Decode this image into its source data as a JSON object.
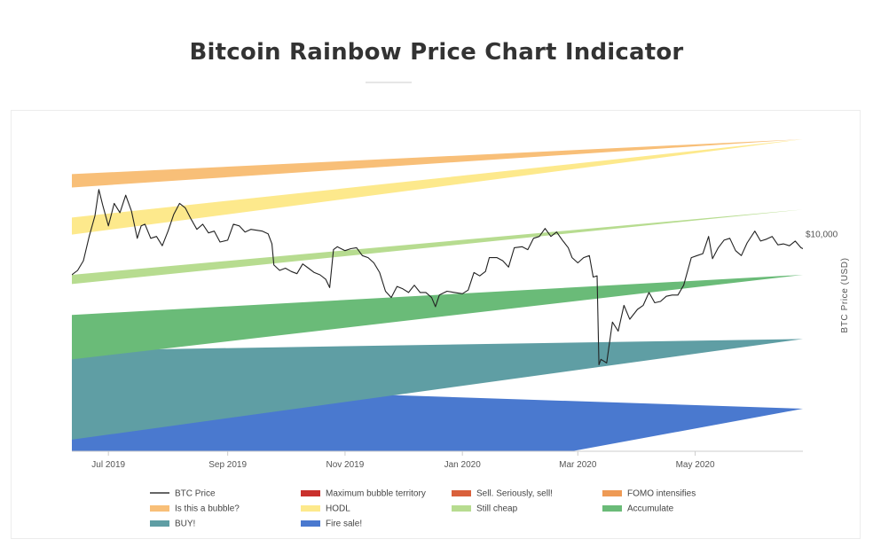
{
  "page": {
    "title": "Bitcoin Rainbow Price Chart Indicator"
  },
  "chart_data": {
    "type": "line",
    "title": "Bitcoin Rainbow Price Chart Indicator",
    "xlabel": "",
    "ylabel": "BTC Price (USD)",
    "y_scale": "log",
    "grid": false,
    "legend_position": "bottom",
    "x_range": [
      "2019-06-12",
      "2020-06-26"
    ],
    "y_range": [
      3000,
      17000
    ],
    "x_ticks": [
      {
        "label": "Jul 2019",
        "date": "2019-07-01"
      },
      {
        "label": "Sep 2019",
        "date": "2019-09-01"
      },
      {
        "label": "Nov 2019",
        "date": "2019-11-01"
      },
      {
        "label": "Jan 2020",
        "date": "2020-01-01"
      },
      {
        "label": "Mar 2020",
        "date": "2020-03-01"
      },
      {
        "label": "May 2020",
        "date": "2020-05-01"
      }
    ],
    "y_ticks": [
      {
        "label": "$10,000",
        "value": 10000
      }
    ],
    "bands": [
      {
        "name": "Fire sale!",
        "color": "#4a79cf",
        "start": [
          1800,
          4350
        ],
        "end": [
          3800,
          3800
        ]
      },
      {
        "name": "BUY!",
        "color": "#5f9ea4",
        "start": [
          3200,
          5250
        ],
        "end": [
          5600,
          5600
        ]
      },
      {
        "name": "Accumulate",
        "color": "#6abb78",
        "start": [
          5000,
          6400
        ],
        "end": [
          8000,
          8000
        ]
      },
      {
        "name": "Still cheap",
        "color": "#b7dc90",
        "start": [
          7600,
          8000
        ],
        "end": [
          11500,
          11500
        ]
      },
      {
        "name": "HODL",
        "color": "#fde98c",
        "start": [
          11000,
          10000
        ],
        "end": [
          17000,
          17000
        ]
      },
      {
        "name": "Is this a bubble?",
        "color": "#f8bf78",
        "start": [
          14000,
          13000
        ],
        "end": [
          17000,
          17000
        ]
      }
    ],
    "series": [
      {
        "name": "BTC Price",
        "color": "#222222",
        "points": [
          [
            "2019-06-12",
            8000
          ],
          [
            "2019-06-15",
            8200
          ],
          [
            "2019-06-18",
            8650
          ],
          [
            "2019-06-21",
            9900
          ],
          [
            "2019-06-24",
            11100
          ],
          [
            "2019-06-26",
            12850
          ],
          [
            "2019-06-28",
            11800
          ],
          [
            "2019-07-01",
            10500
          ],
          [
            "2019-07-04",
            11900
          ],
          [
            "2019-07-07",
            11300
          ],
          [
            "2019-07-10",
            12450
          ],
          [
            "2019-07-13",
            11400
          ],
          [
            "2019-07-16",
            9800
          ],
          [
            "2019-07-18",
            10500
          ],
          [
            "2019-07-20",
            10600
          ],
          [
            "2019-07-23",
            9800
          ],
          [
            "2019-07-26",
            9900
          ],
          [
            "2019-07-29",
            9400
          ],
          [
            "2019-08-01",
            10200
          ],
          [
            "2019-08-04",
            11200
          ],
          [
            "2019-08-07",
            11900
          ],
          [
            "2019-08-10",
            11600
          ],
          [
            "2019-08-13",
            10900
          ],
          [
            "2019-08-16",
            10300
          ],
          [
            "2019-08-19",
            10600
          ],
          [
            "2019-08-22",
            10100
          ],
          [
            "2019-08-25",
            10200
          ],
          [
            "2019-08-28",
            9600
          ],
          [
            "2019-09-01",
            9700
          ],
          [
            "2019-09-04",
            10600
          ],
          [
            "2019-09-07",
            10500
          ],
          [
            "2019-09-10",
            10150
          ],
          [
            "2019-09-13",
            10300
          ],
          [
            "2019-09-16",
            10250
          ],
          [
            "2019-09-19",
            10200
          ],
          [
            "2019-09-22",
            10050
          ],
          [
            "2019-09-24",
            9500
          ],
          [
            "2019-09-25",
            8450
          ],
          [
            "2019-09-28",
            8200
          ],
          [
            "2019-10-01",
            8300
          ],
          [
            "2019-10-04",
            8150
          ],
          [
            "2019-10-07",
            8050
          ],
          [
            "2019-10-10",
            8500
          ],
          [
            "2019-10-13",
            8300
          ],
          [
            "2019-10-16",
            8100
          ],
          [
            "2019-10-19",
            8000
          ],
          [
            "2019-10-22",
            7800
          ],
          [
            "2019-10-24",
            7450
          ],
          [
            "2019-10-26",
            9200
          ],
          [
            "2019-10-28",
            9350
          ],
          [
            "2019-11-01",
            9150
          ],
          [
            "2019-11-04",
            9250
          ],
          [
            "2019-11-07",
            9300
          ],
          [
            "2019-11-10",
            8900
          ],
          [
            "2019-11-13",
            8800
          ],
          [
            "2019-11-16",
            8550
          ],
          [
            "2019-11-19",
            8100
          ],
          [
            "2019-11-22",
            7300
          ],
          [
            "2019-11-25",
            7050
          ],
          [
            "2019-11-28",
            7500
          ],
          [
            "2019-12-01",
            7400
          ],
          [
            "2019-12-04",
            7250
          ],
          [
            "2019-12-07",
            7550
          ],
          [
            "2019-12-10",
            7250
          ],
          [
            "2019-12-13",
            7250
          ],
          [
            "2019-12-16",
            7050
          ],
          [
            "2019-12-18",
            6700
          ],
          [
            "2019-12-20",
            7150
          ],
          [
            "2019-12-24",
            7300
          ],
          [
            "2019-12-28",
            7250
          ],
          [
            "2020-01-01",
            7200
          ],
          [
            "2020-01-04",
            7350
          ],
          [
            "2020-01-07",
            8100
          ],
          [
            "2020-01-10",
            7950
          ],
          [
            "2020-01-13",
            8150
          ],
          [
            "2020-01-15",
            8800
          ],
          [
            "2020-01-19",
            8800
          ],
          [
            "2020-01-22",
            8650
          ],
          [
            "2020-01-25",
            8350
          ],
          [
            "2020-01-28",
            9300
          ],
          [
            "2020-02-01",
            9350
          ],
          [
            "2020-02-04",
            9200
          ],
          [
            "2020-02-07",
            9800
          ],
          [
            "2020-02-10",
            9900
          ],
          [
            "2020-02-13",
            10350
          ],
          [
            "2020-02-16",
            9900
          ],
          [
            "2020-02-19",
            10150
          ],
          [
            "2020-02-22",
            9700
          ],
          [
            "2020-02-25",
            9300
          ],
          [
            "2020-02-27",
            8800
          ],
          [
            "2020-03-01",
            8550
          ],
          [
            "2020-03-04",
            8800
          ],
          [
            "2020-03-07",
            8900
          ],
          [
            "2020-03-09",
            7900
          ],
          [
            "2020-03-11",
            7950
          ],
          [
            "2020-03-12",
            4850
          ],
          [
            "2020-03-13",
            5000
          ],
          [
            "2020-03-16",
            4900
          ],
          [
            "2020-03-19",
            6150
          ],
          [
            "2020-03-22",
            5850
          ],
          [
            "2020-03-25",
            6750
          ],
          [
            "2020-03-28",
            6250
          ],
          [
            "2020-04-01",
            6600
          ],
          [
            "2020-04-04",
            6750
          ],
          [
            "2020-04-07",
            7250
          ],
          [
            "2020-04-10",
            6850
          ],
          [
            "2020-04-13",
            6900
          ],
          [
            "2020-04-16",
            7100
          ],
          [
            "2020-04-19",
            7150
          ],
          [
            "2020-04-22",
            7150
          ],
          [
            "2020-04-25",
            7550
          ],
          [
            "2020-04-29",
            8800
          ],
          [
            "2020-05-02",
            8900
          ],
          [
            "2020-05-05",
            9000
          ],
          [
            "2020-05-08",
            9900
          ],
          [
            "2020-05-10",
            8750
          ],
          [
            "2020-05-13",
            9300
          ],
          [
            "2020-05-16",
            9700
          ],
          [
            "2020-05-19",
            9800
          ],
          [
            "2020-05-22",
            9150
          ],
          [
            "2020-05-25",
            8900
          ],
          [
            "2020-05-28",
            9550
          ],
          [
            "2020-06-01",
            10200
          ],
          [
            "2020-06-04",
            9650
          ],
          [
            "2020-06-07",
            9750
          ],
          [
            "2020-06-10",
            9900
          ],
          [
            "2020-06-13",
            9450
          ],
          [
            "2020-06-16",
            9500
          ],
          [
            "2020-06-19",
            9400
          ],
          [
            "2020-06-22",
            9650
          ],
          [
            "2020-06-25",
            9300
          ],
          [
            "2020-06-26",
            9250
          ]
        ]
      }
    ],
    "legend": [
      {
        "label": "BTC Price",
        "color": "#333333",
        "kind": "line"
      },
      {
        "label": "Maximum bubble territory",
        "color": "#c9302c",
        "kind": "swatch"
      },
      {
        "label": "Sell. Seriously, sell!",
        "color": "#d9603b",
        "kind": "swatch"
      },
      {
        "label": "FOMO intensifies",
        "color": "#ee9a55",
        "kind": "swatch"
      },
      {
        "label": "Is this a bubble?",
        "color": "#f8bf78",
        "kind": "swatch"
      },
      {
        "label": "HODL",
        "color": "#fde98c",
        "kind": "swatch"
      },
      {
        "label": "Still cheap",
        "color": "#b7dc90",
        "kind": "swatch"
      },
      {
        "label": "Accumulate",
        "color": "#6abb78",
        "kind": "swatch"
      },
      {
        "label": "BUY!",
        "color": "#5f9ea4",
        "kind": "swatch"
      },
      {
        "label": "Fire sale!",
        "color": "#4a79cf",
        "kind": "swatch"
      }
    ]
  }
}
